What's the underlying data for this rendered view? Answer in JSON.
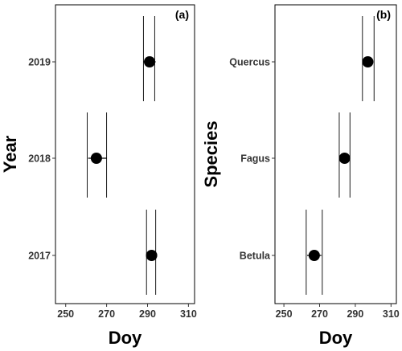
{
  "chart_data": [
    {
      "type": "scatter",
      "panel_label": "(a)",
      "xlabel": "Doy",
      "ylabel": "Year",
      "xlim": [
        245,
        313
      ],
      "xticks": [
        250,
        270,
        290,
        310
      ],
      "categories": [
        "2017",
        "2018",
        "2019"
      ],
      "points": [
        {
          "category": "2017",
          "x": 292,
          "whisker": [
            290,
            294
          ],
          "vlines": [
            289.5,
            294
          ]
        },
        {
          "category": "2018",
          "x": 265,
          "whisker": [
            261,
            270
          ],
          "vlines": [
            260.5,
            270
          ]
        },
        {
          "category": "2019",
          "x": 291,
          "whisker": [
            288,
            294
          ],
          "vlines": [
            288,
            293.5
          ]
        }
      ],
      "grid": false,
      "marker_color": "#000000"
    },
    {
      "type": "scatter",
      "panel_label": "(b)",
      "xlabel": "Doy",
      "ylabel": "Species",
      "xlim": [
        245,
        313
      ],
      "xticks": [
        250,
        270,
        290,
        310
      ],
      "categories": [
        "Betula",
        "Fagus",
        "Quercus"
      ],
      "points": [
        {
          "category": "Betula",
          "x": 267,
          "whisker": [
            263,
            271
          ],
          "vlines": [
            262.5,
            271.5
          ]
        },
        {
          "category": "Fagus",
          "x": 284,
          "whisker": [
            281,
            287
          ],
          "vlines": [
            281,
            287
          ]
        },
        {
          "category": "Quercus",
          "x": 297,
          "whisker": [
            294,
            300
          ],
          "vlines": [
            294,
            300.5
          ]
        }
      ],
      "grid": false,
      "marker_color": "#000000"
    }
  ]
}
